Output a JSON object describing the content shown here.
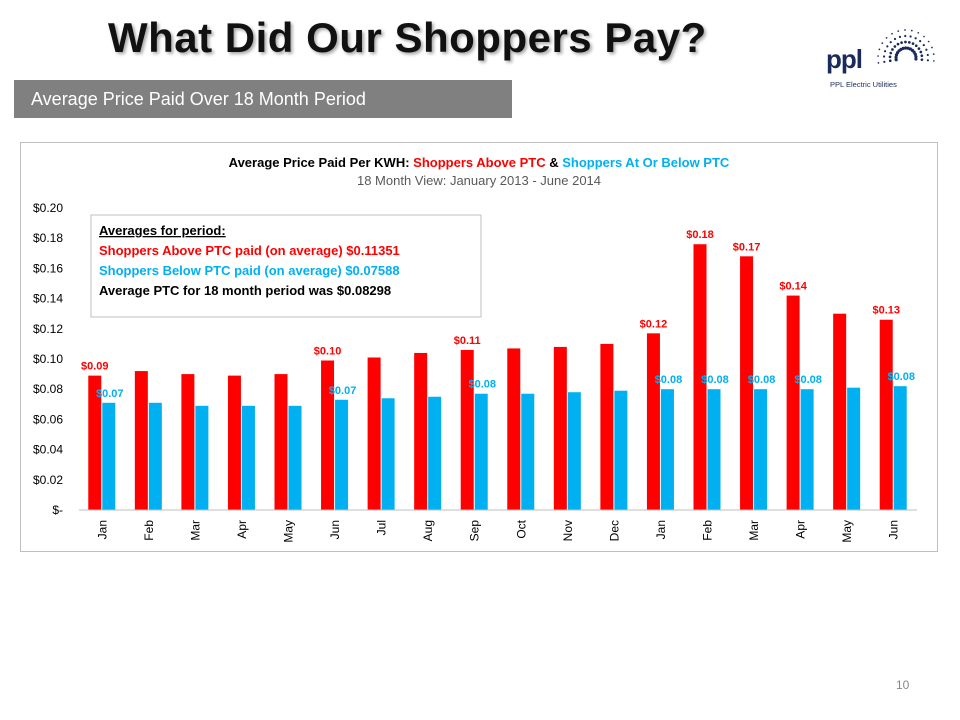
{
  "slide": {
    "title": "What Did Our Shoppers Pay?",
    "subtitle": "Average Price Paid Over 18 Month Period",
    "page_number": "10"
  },
  "logo": {
    "name": "ppl",
    "subtitle": "PPL Electric Utilities",
    "icon": "sunburst-icon",
    "color": "#1b2a5c"
  },
  "colors": {
    "above_ptc": "#ff0000",
    "below_ptc": "#00b0f0",
    "title_dark": "#000000",
    "subtitle_gray": "#595959"
  },
  "chart_data": {
    "type": "bar",
    "title_parts": {
      "prefix": "Average Price Paid Per KWH: ",
      "series_a": "Shoppers Above PTC",
      "joiner": " & ",
      "series_b": "Shoppers At Or Below PTC"
    },
    "subtitle": "18 Month View: January 2013 - June 2014",
    "categories": [
      "Jan",
      "Feb",
      "Mar",
      "Apr",
      "May",
      "Jun",
      "Jul",
      "Aug",
      "Sep",
      "Oct",
      "Nov",
      "Dec",
      "Jan",
      "Feb",
      "Mar",
      "Apr",
      "May",
      "Jun"
    ],
    "series": [
      {
        "values": [
          0.089,
          0.092,
          0.09,
          0.089,
          0.09,
          0.099,
          0.101,
          0.104,
          0.106,
          0.107,
          0.108,
          0.11,
          0.117,
          0.176,
          0.168,
          0.142,
          0.13,
          0.126
        ],
        "labels": [
          "$0.09",
          "",
          "",
          "",
          "",
          "$0.10",
          "",
          "",
          "$0.11",
          "",
          "",
          "",
          "$0.12",
          "$0.18",
          "$0.17",
          "$0.14",
          "",
          "$0.13"
        ],
        "color": "#ff0000"
      },
      {
        "values": [
          0.071,
          0.071,
          0.069,
          0.069,
          0.069,
          0.073,
          0.074,
          0.075,
          0.077,
          0.077,
          0.078,
          0.079,
          0.08,
          0.08,
          0.08,
          0.08,
          0.081,
          0.082
        ],
        "labels": [
          "$0.07",
          "",
          "",
          "",
          "",
          "$0.07",
          "",
          "",
          "$0.08",
          "",
          "",
          "",
          "$0.08",
          "$0.08",
          "$0.08",
          "$0.08",
          "",
          "$0.08"
        ],
        "color": "#00b0f0"
      }
    ],
    "y_ticks": [
      "$-",
      "$0.02",
      "$0.04",
      "$0.06",
      "$0.08",
      "$0.10",
      "$0.12",
      "$0.14",
      "$0.16",
      "$0.18",
      "$0.20"
    ],
    "ylim": [
      0,
      0.2
    ],
    "grid": false,
    "legend": "none",
    "annotation_box": {
      "heading": "Averages for period:",
      "line_above": "Shoppers Above PTC paid (on average) $0.11351",
      "line_below": "Shoppers Below PTC paid (on average) $0.07588",
      "line_ptc": "Average PTC for 18 month period was $0.08298"
    }
  }
}
